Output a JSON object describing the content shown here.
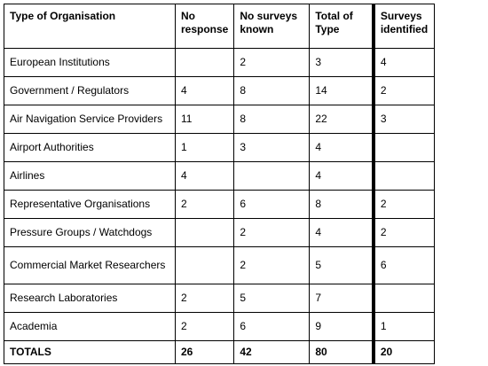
{
  "table": {
    "headers": [
      "Type of Organisation",
      "No response",
      "No surveys known",
      "Total of Type",
      "Surveys identified"
    ],
    "rows": [
      [
        "European Institutions",
        "",
        "2",
        "3",
        "4"
      ],
      [
        "Government / Regulators",
        "4",
        "8",
        "14",
        "2"
      ],
      [
        "Air Navigation Service Providers",
        "11",
        "8",
        "22",
        "3"
      ],
      [
        "Airport Authorities",
        "1",
        "3",
        "4",
        ""
      ],
      [
        "Airlines",
        "4",
        "",
        "4",
        ""
      ],
      [
        "Representative Organisations",
        "2",
        "6",
        "8",
        "2"
      ],
      [
        "Pressure Groups / Watchdogs",
        "",
        "2",
        "4",
        "2"
      ],
      [
        "Commercial Market Researchers",
        "",
        "2",
        "5",
        "6"
      ],
      [
        "Research Laboratories",
        "2",
        "5",
        "7",
        ""
      ],
      [
        "Academia",
        "2",
        "6",
        "9",
        "1"
      ]
    ],
    "totals": [
      "TOTALS",
      "26",
      "42",
      "80",
      "20"
    ]
  }
}
